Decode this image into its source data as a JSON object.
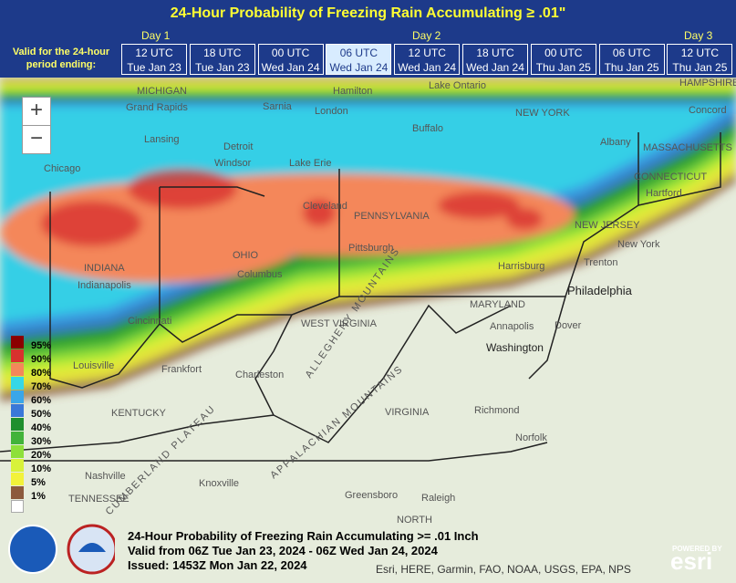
{
  "header": {
    "title": "24-Hour Probability of Freezing Rain Accumulating ≥ .01\"",
    "valid_label": "Valid for the 24-hour period ending:",
    "days": [
      "Day 1",
      "Day 2",
      "Day 3"
    ],
    "tabs": [
      [
        "12 UTC",
        "Tue Jan 23"
      ],
      [
        "18 UTC",
        "Tue Jan 23"
      ],
      [
        "00 UTC",
        "Wed Jan 24"
      ],
      [
        "06 UTC",
        "Wed Jan 24"
      ],
      [
        "12 UTC",
        "Wed Jan 24"
      ],
      [
        "18 UTC",
        "Wed Jan 24"
      ],
      [
        "00 UTC",
        "Thu Jan 25"
      ],
      [
        "06 UTC",
        "Thu Jan 25"
      ],
      [
        "12 UTC",
        "Thu Jan 25"
      ]
    ],
    "selected_tab": 3
  },
  "zoom": {
    "in": "+",
    "out": "−"
  },
  "legend": {
    "labels": [
      "95%",
      "90%",
      "80%",
      "70%",
      "60%",
      "50%",
      "40%",
      "30%",
      "20%",
      "10%",
      "5%",
      "1%"
    ],
    "colors": [
      "#8b0000",
      "#d8322e",
      "#f4875a",
      "#36d7e6",
      "#3aa6e8",
      "#3a78d8",
      "#1f8f2e",
      "#42b33a",
      "#8ee03a",
      "#d8f23a",
      "#f2f23a",
      "#8c5a3c"
    ]
  },
  "places": [
    "MICHIGAN",
    "Grand Rapids",
    "Lansing",
    "Detroit",
    "Windsor",
    "Chicago",
    "Sarnia",
    "London",
    "Hamilton",
    "Lake Ontario",
    "Buffalo",
    "NEW YORK",
    "Albany",
    "Concord",
    "HAMPSHIRE",
    "MASSACHUSETTS",
    "CONNECTICUT",
    "Hartford",
    "NEW JERSEY",
    "New York",
    "Trenton",
    "Philadelphia",
    "PENNSYLVANIA",
    "Pittsburgh",
    "Harrisburg",
    "Cleveland",
    "Lake Erie",
    "OHIO",
    "Columbus",
    "INDIANA",
    "Indianapolis",
    "Cincinnati",
    "Louisville",
    "Frankfort",
    "KENTUCKY",
    "WEST VIRGINIA",
    "Charleston",
    "MARYLAND",
    "Annapolis",
    "Washington",
    "Dover",
    "VIRGINIA",
    "Richmond",
    "Norfolk",
    "Nashville",
    "TENNESSEE",
    "Knoxville",
    "Greensboro",
    "Raleigh",
    "NORTH",
    "CUMBERLAND PLATEAU",
    "ALLEGHENY MOUNTAINS",
    "APPALACHIAN MOUNTAINS"
  ],
  "footer": {
    "lines": [
      "24-Hour Probability of Freezing Rain Accumulating >= .01 Inch",
      "Valid from 06Z Tue Jan 23, 2024 - 06Z Wed Jan 24, 2024",
      "Issued: 1453Z Mon Jan 22, 2024"
    ],
    "attribution": "Esri, HERE, Garmin, FAO, NOAA, USGS, EPA, NPS",
    "powered": "POWERED BY",
    "esri": "esri"
  }
}
